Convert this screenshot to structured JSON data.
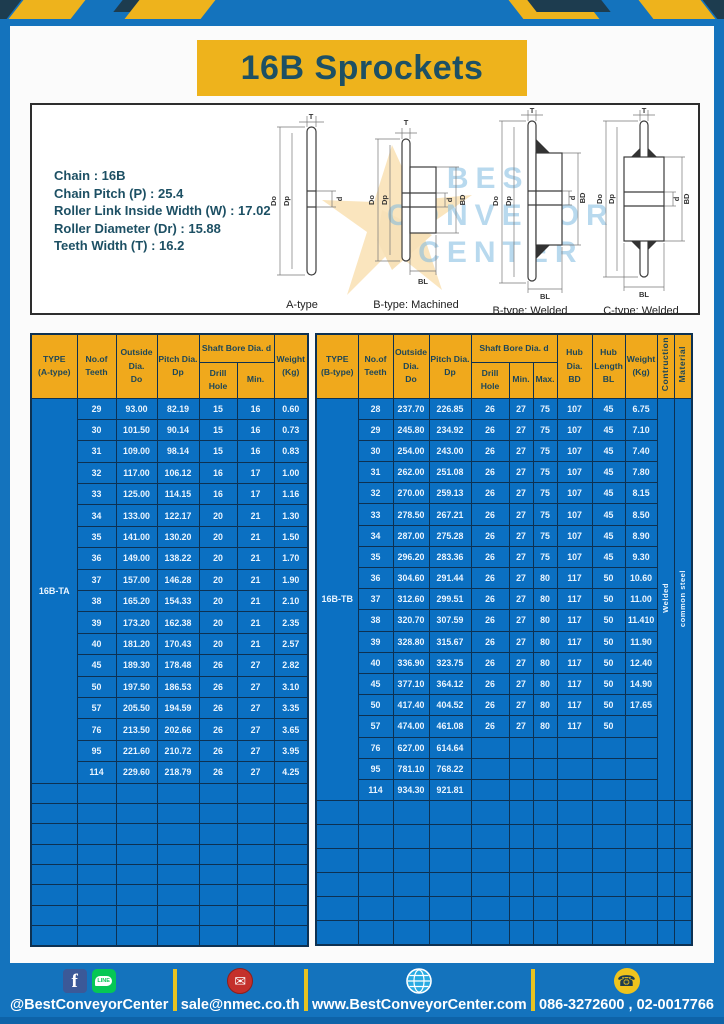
{
  "page": {
    "title": "16B Sprockets"
  },
  "colors": {
    "page_blue": "#1473bd",
    "banner_yellow": "#eeb31c",
    "header_gold": "#f0a91c",
    "cell_blue": "#0b70c2",
    "teal_text": "#1d5064",
    "grid_navy": "#0d3152"
  },
  "specs": {
    "lines": [
      {
        "label": "Chain",
        "value": "16B"
      },
      {
        "label": "Chain Pitch (P)",
        "value": "25.4"
      },
      {
        "label": "Roller Link Inside Width (W)",
        "value": "17.02"
      },
      {
        "label": "Roller Diameter (Dr)",
        "value": "15.88"
      },
      {
        "label": "Teeth Width (T)",
        "value": "16.2"
      }
    ]
  },
  "diagrams": {
    "watermark_lines": [
      "BEST",
      "CONVEYOR",
      "CENTER"
    ],
    "dims": {
      "t": "T",
      "outside": "Do",
      "pitch": "Dp",
      "bore": "d",
      "hub": "BD",
      "hub_len": "BL"
    },
    "captions": [
      "A-type",
      "B-type: Machined",
      "B-type: Welded",
      "C-type: Welded"
    ]
  },
  "table_a": {
    "header": {
      "type": "TYPE\n(A-type)",
      "teeth": "No.of\nTeeth",
      "outside": "Outside\nDia.\nDo",
      "pitch": "Pitch Dia.\nDp",
      "shaft": "Shaft Bore Dia. d",
      "drill": "Drill Hole",
      "min": "Min.",
      "weight": "Weight\n(Kg)"
    },
    "type_label": "16B-TA",
    "rows": [
      [
        "29",
        "93.00",
        "82.19",
        "15",
        "16",
        "0.60"
      ],
      [
        "30",
        "101.50",
        "90.14",
        "15",
        "16",
        "0.73"
      ],
      [
        "31",
        "109.00",
        "98.14",
        "15",
        "16",
        "0.83"
      ],
      [
        "32",
        "117.00",
        "106.12",
        "16",
        "17",
        "1.00"
      ],
      [
        "33",
        "125.00",
        "114.15",
        "16",
        "17",
        "1.16"
      ],
      [
        "34",
        "133.00",
        "122.17",
        "20",
        "21",
        "1.30"
      ],
      [
        "35",
        "141.00",
        "130.20",
        "20",
        "21",
        "1.50"
      ],
      [
        "36",
        "149.00",
        "138.22",
        "20",
        "21",
        "1.70"
      ],
      [
        "37",
        "157.00",
        "146.28",
        "20",
        "21",
        "1.90"
      ],
      [
        "38",
        "165.20",
        "154.33",
        "20",
        "21",
        "2.10"
      ],
      [
        "39",
        "173.20",
        "162.38",
        "20",
        "21",
        "2.35"
      ],
      [
        "40",
        "181.20",
        "170.43",
        "20",
        "21",
        "2.57"
      ],
      [
        "45",
        "189.30",
        "178.48",
        "26",
        "27",
        "2.82"
      ],
      [
        "50",
        "197.50",
        "186.53",
        "26",
        "27",
        "3.10"
      ],
      [
        "57",
        "205.50",
        "194.59",
        "26",
        "27",
        "3.35"
      ],
      [
        "76",
        "213.50",
        "202.66",
        "26",
        "27",
        "3.65"
      ],
      [
        "95",
        "221.60",
        "210.72",
        "26",
        "27",
        "3.95"
      ],
      [
        "114",
        "229.60",
        "218.79",
        "26",
        "27",
        "4.25"
      ]
    ],
    "empty_rows": 8
  },
  "table_b": {
    "header": {
      "type": "TYPE\n(B-type)",
      "teeth": "No.of\nTeeth",
      "outside": "Outside\nDia.\nDo",
      "pitch": "Pitch Dia.\nDp",
      "shaft": "Shaft Bore Dia. d",
      "drill": "Drill Hole",
      "min": "Min.",
      "max": "Max.",
      "hub_dia": "Hub Dia.\nBD",
      "hub_len": "Hub\nLength\nBL",
      "weight": "Weight\n(Kg)",
      "construction": "Contruction",
      "material": "Material"
    },
    "type_label": "16B-TB",
    "construction_value": "Welded",
    "material_value": "common steel",
    "rows": [
      [
        "28",
        "237.70",
        "226.85",
        "26",
        "27",
        "75",
        "107",
        "45",
        "6.75"
      ],
      [
        "29",
        "245.80",
        "234.92",
        "26",
        "27",
        "75",
        "107",
        "45",
        "7.10"
      ],
      [
        "30",
        "254.00",
        "243.00",
        "26",
        "27",
        "75",
        "107",
        "45",
        "7.40"
      ],
      [
        "31",
        "262.00",
        "251.08",
        "26",
        "27",
        "75",
        "107",
        "45",
        "7.80"
      ],
      [
        "32",
        "270.00",
        "259.13",
        "26",
        "27",
        "75",
        "107",
        "45",
        "8.15"
      ],
      [
        "33",
        "278.50",
        "267.21",
        "26",
        "27",
        "75",
        "107",
        "45",
        "8.50"
      ],
      [
        "34",
        "287.00",
        "275.28",
        "26",
        "27",
        "75",
        "107",
        "45",
        "8.90"
      ],
      [
        "35",
        "296.20",
        "283.36",
        "26",
        "27",
        "75",
        "107",
        "45",
        "9.30"
      ],
      [
        "36",
        "304.60",
        "291.44",
        "26",
        "27",
        "80",
        "117",
        "50",
        "10.60"
      ],
      [
        "37",
        "312.60",
        "299.51",
        "26",
        "27",
        "80",
        "117",
        "50",
        "11.00"
      ],
      [
        "38",
        "320.70",
        "307.59",
        "26",
        "27",
        "80",
        "117",
        "50",
        "11.410"
      ],
      [
        "39",
        "328.80",
        "315.67",
        "26",
        "27",
        "80",
        "117",
        "50",
        "11.90"
      ],
      [
        "40",
        "336.90",
        "323.75",
        "26",
        "27",
        "80",
        "117",
        "50",
        "12.40"
      ],
      [
        "45",
        "377.10",
        "364.12",
        "26",
        "27",
        "80",
        "117",
        "50",
        "14.90"
      ],
      [
        "50",
        "417.40",
        "404.52",
        "26",
        "27",
        "80",
        "117",
        "50",
        "17.65"
      ],
      [
        "57",
        "474.00",
        "461.08",
        "26",
        "27",
        "80",
        "117",
        "50",
        ""
      ],
      [
        "76",
        "627.00",
        "614.64",
        "",
        "",
        "",
        "",
        "",
        ""
      ],
      [
        "95",
        "781.10",
        "768.22",
        "",
        "",
        "",
        "",
        "",
        ""
      ],
      [
        "114",
        "934.30",
        "921.81",
        "",
        "",
        "",
        "",
        "",
        ""
      ]
    ],
    "empty_rows": 6
  },
  "footer": {
    "line_icon_text": "LINE",
    "items": [
      {
        "icon": "facebook-line",
        "label": "@BestConveyorCenter"
      },
      {
        "icon": "email",
        "label": "sale@nmec.co.th"
      },
      {
        "icon": "globe",
        "label": "www.BestConveyorCenter.com"
      },
      {
        "icon": "phone",
        "label": "086-3272600 , 02-0017766"
      }
    ]
  }
}
